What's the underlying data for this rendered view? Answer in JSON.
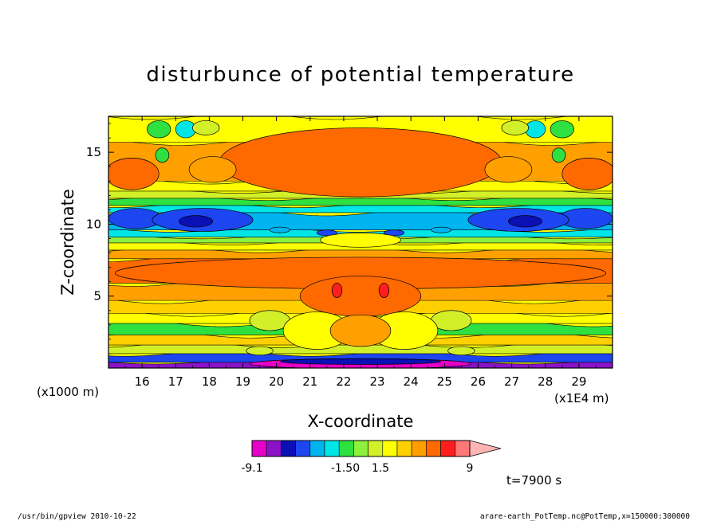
{
  "chart_data": {
    "type": "heatmap",
    "title": "disturbunce of potential temperature",
    "xlabel": "X-coordinate",
    "ylabel": "Z-coordinate",
    "x_unit": "(x1E4 m)",
    "y_unit": "(x1000 m)",
    "xlim": [
      15.0,
      30.0
    ],
    "ylim": [
      0.0,
      17.5
    ],
    "x_ticks": [
      16,
      17,
      18,
      19,
      20,
      21,
      22,
      23,
      24,
      25,
      26,
      27,
      28,
      29
    ],
    "y_ticks": [
      5,
      10,
      15
    ],
    "levels": [
      -9.1,
      -7.3,
      -5.4,
      -3.5,
      -1.5,
      -1.0,
      -0.5,
      -0.25,
      0.0,
      0.25,
      0.5,
      1.0,
      1.5,
      3.5,
      5.4,
      7.3,
      9
    ],
    "colorbar": {
      "labels": [
        "-9.1",
        "-1.50",
        "1.5",
        "9"
      ],
      "colors": [
        "#e600c8",
        "#8a12c8",
        "#0a10b4",
        "#1e46f0",
        "#00b4f0",
        "#00e6e6",
        "#2ee040",
        "#8cf03c",
        "#d2f028",
        "#ffff00",
        "#ffd000",
        "#ffa000",
        "#ff6a00",
        "#ff1e1e",
        "#ff7878",
        "#ffb4b4"
      ]
    },
    "bands": [
      {
        "z": [
          0.0,
          0.4
        ],
        "level": -5.4
      },
      {
        "z": [
          0.4,
          1.0
        ],
        "level": -1.5
      },
      {
        "z": [
          1.0,
          1.6
        ],
        "level": 0.25
      },
      {
        "z": [
          1.6,
          2.3
        ],
        "level": 1.0
      },
      {
        "z": [
          2.3,
          3.1
        ],
        "level": -0.25
      },
      {
        "z": [
          3.1,
          3.8
        ],
        "level": 0.5
      },
      {
        "z": [
          3.8,
          4.7
        ],
        "level": 1.0
      },
      {
        "z": [
          4.7,
          5.9
        ],
        "level": 1.5
      },
      {
        "z": [
          5.9,
          7.6
        ],
        "level": 3.5
      },
      {
        "z": [
          7.6,
          8.2
        ],
        "level": 1.5
      },
      {
        "z": [
          8.2,
          8.7
        ],
        "level": 0.5
      },
      {
        "z": [
          8.7,
          9.1
        ],
        "level": 0.0
      },
      {
        "z": [
          9.1,
          9.6
        ],
        "level": -0.5
      },
      {
        "z": [
          9.6,
          10.8
        ],
        "level": -1.0
      },
      {
        "z": [
          10.8,
          11.3
        ],
        "level": -0.5
      },
      {
        "z": [
          11.3,
          11.8
        ],
        "level": -0.25
      },
      {
        "z": [
          11.8,
          12.3
        ],
        "level": 0.25
      },
      {
        "z": [
          12.3,
          13.0
        ],
        "level": 0.5
      },
      {
        "z": [
          13.0,
          15.7
        ],
        "level": 1.5
      },
      {
        "z": [
          15.7,
          17.5
        ],
        "level": 0.5
      }
    ],
    "blobs": [
      {
        "cx": 22.5,
        "cz": 14.3,
        "rx": 4.2,
        "rz": 2.4,
        "level": 3.5
      },
      {
        "cx": 22.5,
        "cz": 6.6,
        "rx": 7.3,
        "rz": 1.1,
        "level": 3.5
      },
      {
        "cx": 22.5,
        "cz": 5.0,
        "rx": 1.8,
        "rz": 1.4,
        "level": 3.5
      },
      {
        "cx": 15.7,
        "cz": 13.5,
        "rx": 0.8,
        "rz": 1.1,
        "level": 3.5
      },
      {
        "cx": 29.3,
        "cz": 13.5,
        "rx": 0.8,
        "rz": 1.1,
        "level": 3.5
      },
      {
        "cx": 18.1,
        "cz": 13.8,
        "rx": 0.7,
        "rz": 0.9,
        "level": 1.5
      },
      {
        "cx": 26.9,
        "cz": 13.8,
        "rx": 0.7,
        "rz": 0.9,
        "level": 1.5
      },
      {
        "cx": 15.8,
        "cz": 10.4,
        "rx": 0.8,
        "rz": 0.7,
        "level": -1.5
      },
      {
        "cx": 29.2,
        "cz": 10.4,
        "rx": 0.8,
        "rz": 0.7,
        "level": -1.5
      },
      {
        "cx": 17.8,
        "cz": 10.3,
        "rx": 1.5,
        "rz": 0.8,
        "level": -1.5
      },
      {
        "cx": 27.2,
        "cz": 10.3,
        "rx": 1.5,
        "rz": 0.8,
        "level": -1.5
      },
      {
        "cx": 17.6,
        "cz": 10.2,
        "rx": 0.5,
        "rz": 0.4,
        "level": -3.5
      },
      {
        "cx": 27.4,
        "cz": 10.2,
        "rx": 0.5,
        "rz": 0.4,
        "level": -3.5
      },
      {
        "cx": 20.1,
        "cz": 9.6,
        "rx": 0.3,
        "rz": 0.2,
        "level": -1.0
      },
      {
        "cx": 21.5,
        "cz": 9.4,
        "rx": 0.3,
        "rz": 0.2,
        "level": -1.5
      },
      {
        "cx": 23.5,
        "cz": 9.4,
        "rx": 0.3,
        "rz": 0.2,
        "level": -1.5
      },
      {
        "cx": 24.9,
        "cz": 9.6,
        "rx": 0.3,
        "rz": 0.2,
        "level": -1.0
      },
      {
        "cx": 22.5,
        "cz": 8.9,
        "rx": 1.2,
        "rz": 0.5,
        "level": 0.5
      },
      {
        "cx": 16.5,
        "cz": 16.6,
        "rx": 0.35,
        "rz": 0.6,
        "level": -0.25
      },
      {
        "cx": 28.5,
        "cz": 16.6,
        "rx": 0.35,
        "rz": 0.6,
        "level": -0.25
      },
      {
        "cx": 17.3,
        "cz": 16.6,
        "rx": 0.3,
        "rz": 0.6,
        "level": -0.5
      },
      {
        "cx": 27.7,
        "cz": 16.6,
        "rx": 0.3,
        "rz": 0.6,
        "level": -0.5
      },
      {
        "cx": 16.6,
        "cz": 14.8,
        "rx": 0.2,
        "rz": 0.5,
        "level": -0.25
      },
      {
        "cx": 28.4,
        "cz": 14.8,
        "rx": 0.2,
        "rz": 0.5,
        "level": -0.25
      },
      {
        "cx": 17.9,
        "cz": 16.7,
        "rx": 0.4,
        "rz": 0.5,
        "level": 0.25
      },
      {
        "cx": 27.1,
        "cz": 16.7,
        "rx": 0.4,
        "rz": 0.5,
        "level": 0.25
      },
      {
        "cx": 21.8,
        "cz": 5.4,
        "rx": 0.15,
        "rz": 0.5,
        "level": 5.4
      },
      {
        "cx": 23.2,
        "cz": 5.4,
        "rx": 0.15,
        "rz": 0.5,
        "level": 5.4
      },
      {
        "cx": 19.8,
        "cz": 3.3,
        "rx": 0.6,
        "rz": 0.7,
        "level": 0.25
      },
      {
        "cx": 25.2,
        "cz": 3.3,
        "rx": 0.6,
        "rz": 0.7,
        "level": 0.25
      },
      {
        "cx": 19.5,
        "cz": 1.2,
        "rx": 0.4,
        "rz": 0.3,
        "level": 0.25
      },
      {
        "cx": 25.5,
        "cz": 1.2,
        "rx": 0.4,
        "rz": 0.3,
        "level": 0.25
      },
      {
        "cx": 21.2,
        "cz": 2.6,
        "rx": 1.0,
        "rz": 1.3,
        "level": 0.5
      },
      {
        "cx": 23.8,
        "cz": 2.6,
        "rx": 1.0,
        "rz": 1.3,
        "level": 0.5
      },
      {
        "cx": 22.5,
        "cz": 2.6,
        "rx": 0.9,
        "rz": 1.1,
        "level": 1.5
      },
      {
        "cx": 22.5,
        "cz": 0.3,
        "rx": 3.3,
        "rz": 0.35,
        "level": -7.3
      },
      {
        "cx": 22.5,
        "cz": 0.45,
        "rx": 2.4,
        "rz": 0.2,
        "level": -3.5
      }
    ]
  },
  "time_label": "t=7900 s",
  "footer": {
    "left": "/usr/bin/gpview   2010-10-22",
    "right": "arare-earth_PotTemp.nc@PotTemp,x=150000:300000"
  }
}
